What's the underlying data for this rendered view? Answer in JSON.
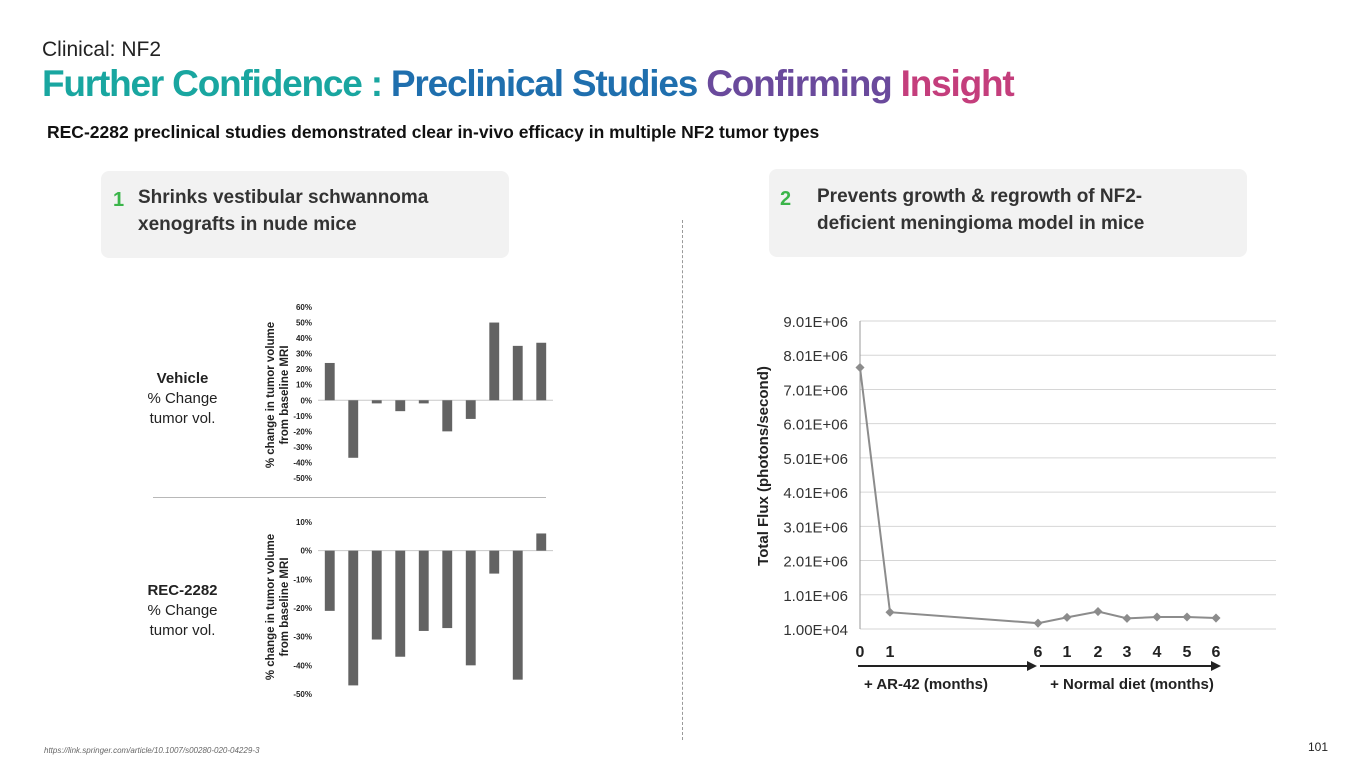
{
  "header": {
    "section": "Clinical: NF2",
    "title_parts": [
      {
        "text": "Further Confidence : ",
        "color": "#19a6a0"
      },
      {
        "text": "Preclinical Studies ",
        "color": "#1f6fae"
      },
      {
        "text": "Confirming ",
        "color": "#6a4a9c"
      },
      {
        "text": "Insight",
        "color": "#c43e7c"
      }
    ],
    "subtitle": "REC-2282 preclinical studies demonstrated clear in-vivo efficacy in multiple NF2 tumor types"
  },
  "cards": [
    {
      "number": "1",
      "text": "Shrinks vestibular schwannoma xenografts in nude mice"
    },
    {
      "number": "2",
      "text": "Prevents growth & regrowth of NF2-deficient meningioma model in mice"
    }
  ],
  "groups": {
    "vehicle": {
      "name": "Vehicle",
      "desc_1": "% Change",
      "desc_2": "tumor vol."
    },
    "rec": {
      "name": "REC-2282",
      "desc_1": "% Change",
      "desc_2": "tumor vol."
    }
  },
  "colors": {
    "bar": "#636363",
    "line": "#8c8c8c",
    "number_green": "#3bb54a"
  },
  "chart_data": [
    {
      "type": "bar",
      "id": "vehicle",
      "ylabel_line1": "% change in tumor volume",
      "ylabel_line2": "from baseline MRI",
      "ylim": [
        -50,
        60
      ],
      "yticks": [
        60,
        50,
        40,
        30,
        20,
        10,
        0,
        -10,
        -20,
        -30,
        -40,
        -50
      ],
      "ytick_labels": [
        "60%",
        "50%",
        "40%",
        "30%",
        "20%",
        "10%",
        "0%",
        "-10%",
        "-20%",
        "-30%",
        "-40%",
        "-50%"
      ],
      "values": [
        24,
        -37,
        -2,
        -7,
        -2,
        -20,
        -12,
        50,
        35,
        37
      ]
    },
    {
      "type": "bar",
      "id": "rec2282",
      "ylabel_line1": "% change in tumor volume",
      "ylabel_line2": "from baseline MRI",
      "ylim": [
        -50,
        10
      ],
      "yticks": [
        10,
        0,
        -10,
        -20,
        -30,
        -40,
        -50
      ],
      "ytick_labels": [
        "10%",
        "0%",
        "-10%",
        "-20%",
        "-30%",
        "-40%",
        "-50%"
      ],
      "values": [
        -21,
        -47,
        -31,
        -37,
        -28,
        -27,
        -40,
        -8,
        -45,
        6
      ]
    },
    {
      "type": "line",
      "id": "flux",
      "ylabel": "Total Flux (photons/second)",
      "ylim": [
        10000,
        9010000
      ],
      "yticks": [
        9010000,
        8010000,
        7010000,
        6010000,
        5010000,
        4010000,
        3010000,
        2010000,
        1010000,
        10000
      ],
      "ytick_labels": [
        "9.01E+06",
        "8.01E+06",
        "7.01E+06",
        "6.01E+06",
        "5.01E+06",
        "4.01E+06",
        "3.01E+06",
        "2.01E+06",
        "1.01E+06",
        "1.00E+04"
      ],
      "xtick_labels": [
        "0",
        "1",
        "6",
        "1",
        "2",
        "3",
        "4",
        "5",
        "6"
      ],
      "values": [
        7650000,
        500000,
        180000,
        350000,
        520000,
        320000,
        360000,
        360000,
        330000
      ],
      "phase_labels": [
        "+ AR-42 (months)",
        "+ Normal diet (months)"
      ]
    }
  ],
  "footer": {
    "source_url": "https://link.springer.com/article/10.1007/s00280-020-04229-3",
    "page_number": "101"
  }
}
